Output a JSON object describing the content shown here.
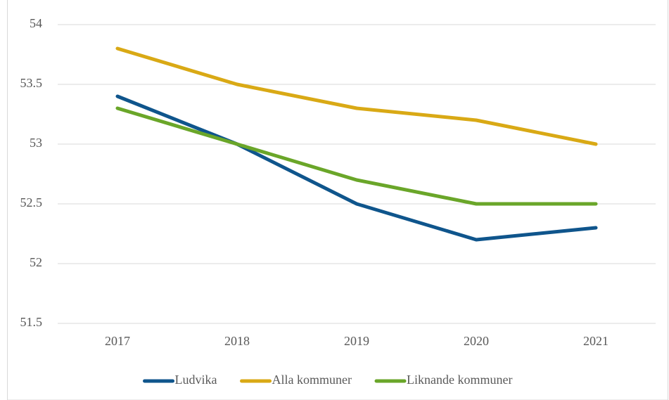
{
  "chart_data": {
    "type": "line",
    "categories": [
      "2017",
      "2018",
      "2019",
      "2020",
      "2021"
    ],
    "series": [
      {
        "name": "Ludvika",
        "color": "#0f558c",
        "values": [
          53.4,
          53.0,
          52.5,
          52.2,
          52.3
        ]
      },
      {
        "name": "Alla kommuner",
        "color": "#d9a915",
        "values": [
          53.8,
          53.5,
          53.3,
          53.2,
          53.0
        ]
      },
      {
        "name": "Liknande kommuner",
        "color": "#6aa629",
        "values": [
          53.3,
          53.0,
          52.7,
          52.5,
          52.5
        ]
      }
    ],
    "ylim": [
      51.5,
      54
    ],
    "yticks": [
      51.5,
      52,
      52.5,
      53,
      53.5,
      54
    ],
    "grid": true,
    "legend": "bottom"
  }
}
